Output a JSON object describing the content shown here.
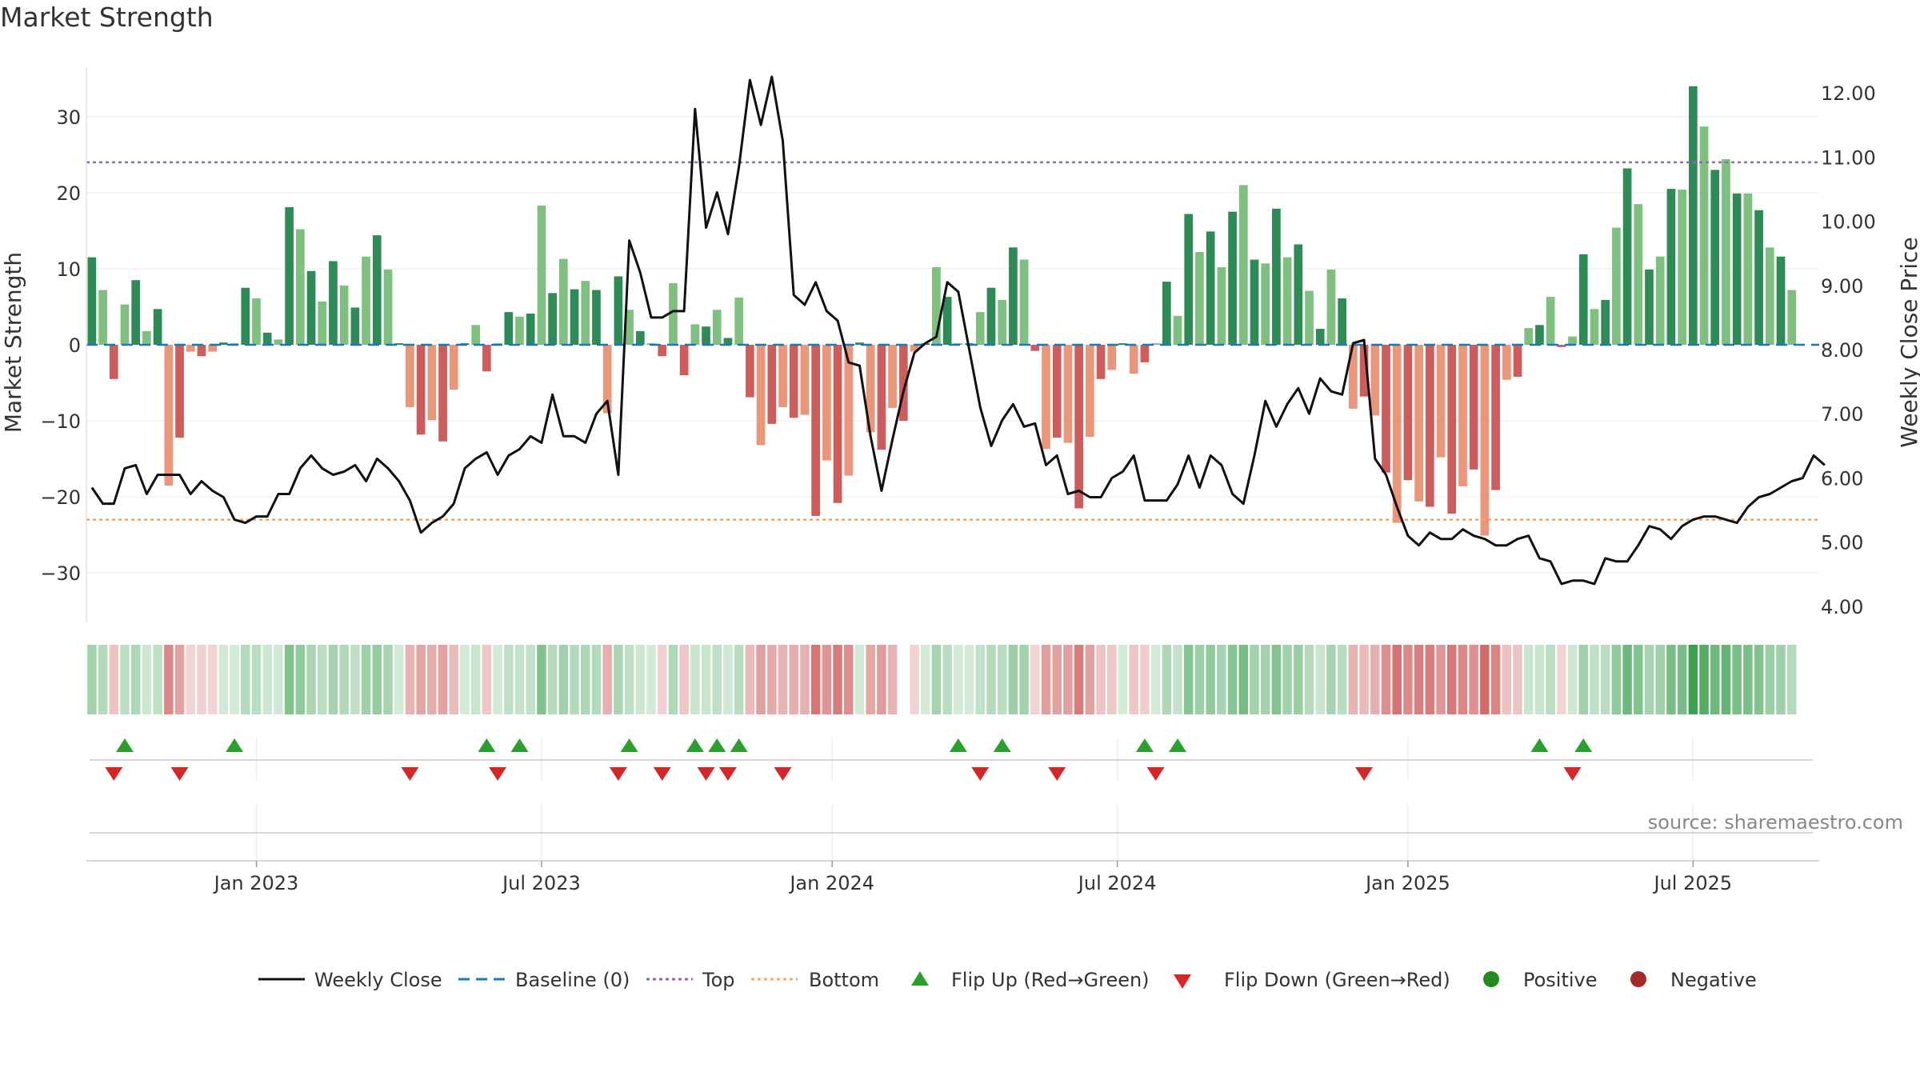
{
  "title": "Market Strength",
  "source": "source: sharemaestro.com",
  "colors": {
    "pos_dark": "#2e8b57",
    "pos_light": "#7fbf7f",
    "neg_dark": "#cd5c5c",
    "neg_light": "#e9967a",
    "line": "#111111",
    "baseline": "#1f77b4",
    "top": "#9467bd",
    "bottom": "#f4a460",
    "flip_up": "#2ca02c",
    "flip_down": "#d62728",
    "positive_dot": "#228b22",
    "negative_dot": "#a52a2a"
  },
  "chart_data": {
    "type": "bar+line",
    "title": "Market Strength",
    "ylabel_left": "Market Strength",
    "ylabel_right": "Weekly Close Price",
    "ylim_left": [
      -36.5,
      36.5
    ],
    "ylim_right": [
      3.75,
      12.4
    ],
    "x_range": [
      -0.5,
      157.5
    ],
    "left_ticks": [
      {
        "value": 30,
        "label": "30"
      },
      {
        "value": 20,
        "label": "20"
      },
      {
        "value": 10,
        "label": "10"
      },
      {
        "value": 0,
        "label": "0"
      },
      {
        "value": -10,
        "label": "−10"
      },
      {
        "value": -20,
        "label": "−20"
      },
      {
        "value": -30,
        "label": "−30"
      }
    ],
    "right_ticks": [
      {
        "value": 12,
        "label": "12.00"
      },
      {
        "value": 11,
        "label": "11.00"
      },
      {
        "value": 10,
        "label": "10.00"
      },
      {
        "value": 9,
        "label": "9.00"
      },
      {
        "value": 8,
        "label": "8.00"
      },
      {
        "value": 7,
        "label": "7.00"
      },
      {
        "value": 6,
        "label": "6.00"
      },
      {
        "value": 5,
        "label": "5.00"
      },
      {
        "value": 4,
        "label": "4.00"
      }
    ],
    "x_ticks": [
      {
        "week": 15,
        "label": "Jan 2023"
      },
      {
        "week": 41,
        "label": "Jul 2023"
      },
      {
        "week": 67.5,
        "label": "Jan 2024"
      },
      {
        "week": 93.5,
        "label": "Jul 2024"
      },
      {
        "week": 120,
        "label": "Jan 2025"
      },
      {
        "week": 146,
        "label": "Jul 2025"
      }
    ],
    "top_level": 24,
    "bottom_level": -23,
    "baseline_level": 0,
    "strength": [
      11.5,
      7.2,
      -4.5,
      5.3,
      8.5,
      1.8,
      4.7,
      -18.5,
      -12.2,
      -0.9,
      -1.5,
      -0.9,
      0.3,
      0.2,
      7.5,
      6.1,
      1.6,
      0.7,
      18.1,
      15.2,
      9.7,
      5.7,
      11.0,
      7.8,
      4.9,
      11.6,
      14.4,
      9.9,
      0.2,
      -8.2,
      -11.8,
      -9.9,
      -12.7,
      -5.9,
      0.2,
      2.6,
      -3.5,
      0.2,
      4.3,
      3.7,
      4.1,
      18.3,
      6.8,
      11.3,
      7.3,
      8.4,
      7.2,
      -9.0,
      9.0,
      4.6,
      1.8,
      0.2,
      -1.5,
      8.1,
      -4.0,
      2.7,
      2.4,
      4.6,
      0.9,
      6.2,
      -6.9,
      -13.2,
      -10.4,
      -8.2,
      -9.6,
      -9.2,
      -22.5,
      -15.2,
      -20.8,
      -17.2,
      0.3,
      -11.5,
      -13.8,
      -8.3,
      -10.0,
      -0.9,
      0.2,
      10.2,
      6.3,
      0.2,
      0.2,
      4.3,
      7.5,
      5.9,
      12.8,
      11.2,
      -0.8,
      -13.7,
      -12.2,
      -12.9,
      -21.5,
      -12.1,
      -4.5,
      -3.3,
      0.2,
      -3.8,
      -2.3,
      0.2,
      8.3,
      3.8,
      17.2,
      12.2,
      14.9,
      10.2,
      17.5,
      21.0,
      11.2,
      10.7,
      17.9,
      11.5,
      13.2,
      7.1,
      2.1,
      9.9,
      6.1,
      -8.4,
      -6.8,
      -9.3,
      -16.8,
      -23.4,
      -17.8,
      -20.6,
      -21.3,
      -14.8,
      -22.2,
      -18.6,
      -16.4,
      -25.1,
      -19.1,
      -4.6,
      -4.2,
      2.2,
      2.6,
      6.3,
      -0.3,
      1.1,
      11.9,
      4.7,
      5.9,
      15.4,
      23.2,
      18.5,
      9.9,
      11.6,
      20.5,
      20.4,
      34.0,
      28.7,
      23.0,
      24.4,
      19.9,
      19.9,
      17.7,
      12.8,
      11.6,
      7.2
    ],
    "close": [
      5.85,
      5.6,
      5.6,
      6.15,
      6.2,
      5.75,
      6.05,
      6.05,
      6.05,
      5.75,
      5.95,
      5.8,
      5.7,
      5.35,
      5.3,
      5.4,
      5.4,
      5.75,
      5.75,
      6.15,
      6.35,
      6.15,
      6.05,
      6.1,
      6.2,
      5.95,
      6.3,
      6.15,
      5.95,
      5.65,
      5.15,
      5.3,
      5.4,
      5.6,
      6.15,
      6.3,
      6.4,
      6.05,
      6.35,
      6.45,
      6.65,
      6.55,
      7.3,
      6.65,
      6.65,
      6.55,
      7.0,
      7.2,
      6.05,
      9.7,
      9.2,
      8.5,
      8.5,
      8.6,
      8.6,
      11.75,
      9.9,
      10.45,
      9.8,
      10.85,
      12.2,
      11.5,
      12.25,
      11.25,
      8.85,
      8.7,
      9.05,
      8.6,
      8.45,
      7.8,
      7.75,
      6.65,
      5.8,
      6.6,
      7.35,
      7.95,
      8.1,
      8.2,
      9.05,
      8.9,
      8.0,
      7.1,
      6.5,
      6.9,
      7.15,
      6.8,
      6.85,
      6.2,
      6.35,
      5.75,
      5.8,
      5.7,
      5.7,
      6.0,
      6.1,
      6.35,
      5.65,
      5.65,
      5.65,
      5.9,
      6.35,
      5.85,
      6.35,
      6.2,
      5.75,
      5.6,
      6.35,
      7.2,
      6.8,
      7.15,
      7.4,
      7.0,
      7.55,
      7.35,
      7.3,
      8.1,
      8.15,
      6.3,
      6.05,
      5.55,
      5.1,
      4.95,
      5.15,
      5.05,
      5.05,
      5.2,
      5.1,
      5.05,
      4.95,
      4.95,
      5.05,
      5.1,
      4.75,
      4.7,
      4.35,
      4.4,
      4.4,
      4.35,
      4.75,
      4.7,
      4.7,
      4.95,
      5.25,
      5.2,
      5.05,
      5.25,
      5.35,
      5.4,
      5.4,
      5.35,
      5.3,
      5.55,
      5.7,
      5.75,
      5.85,
      5.95,
      6.0,
      6.35,
      6.2
    ],
    "flip_up_weeks": [
      3,
      13,
      36,
      39,
      49,
      55,
      57,
      59,
      79,
      83,
      96,
      99,
      132,
      136
    ],
    "flip_down_weeks": [
      2,
      8,
      29,
      37,
      48,
      52,
      56,
      58,
      63,
      81,
      88,
      97,
      116,
      135
    ],
    "heat_gap_weeks": [
      74
    ]
  },
  "legend": {
    "weekly_close": "Weekly Close",
    "baseline": "Baseline (0)",
    "top": "Top",
    "bottom": "Bottom",
    "flip_up": "Flip Up (Red→Green)",
    "flip_down": "Flip Down (Green→Red)",
    "positive": "Positive",
    "negative": "Negative"
  }
}
